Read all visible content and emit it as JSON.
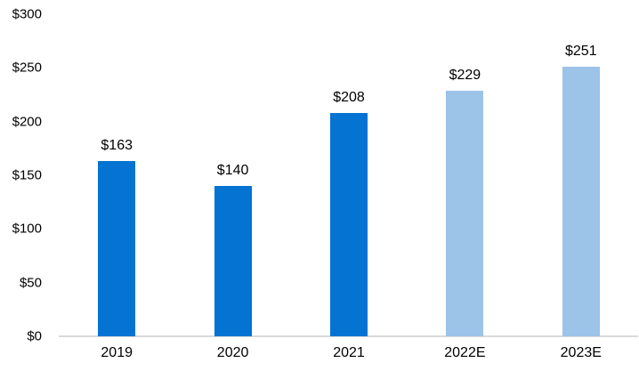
{
  "chart_data": {
    "type": "bar",
    "title": "",
    "xlabel": "",
    "ylabel": "",
    "categories": [
      "2019",
      "2020",
      "2021",
      "2022E",
      "2023E"
    ],
    "values": [
      163,
      140,
      208,
      229,
      251
    ],
    "value_labels": [
      "$163",
      "$140",
      "$208",
      "$229",
      "$251"
    ],
    "bar_colors": [
      "#0473d2",
      "#0473d2",
      "#0473d2",
      "#9cc3e8",
      "#9cc3e8"
    ],
    "ylim": [
      0,
      300
    ],
    "yticks": [
      0,
      50,
      100,
      150,
      200,
      250,
      300
    ],
    "ytick_labels": [
      "$0",
      "$50",
      "$100",
      "$150",
      "$200",
      "$250",
      "$300"
    ],
    "grid": false,
    "legend": false,
    "colors": {
      "actual_bar": "#0473d2",
      "estimate_bar": "#9cc3e8",
      "axis_line": "#d9d9d9",
      "text": "#000000",
      "background": "#ffffff"
    }
  }
}
